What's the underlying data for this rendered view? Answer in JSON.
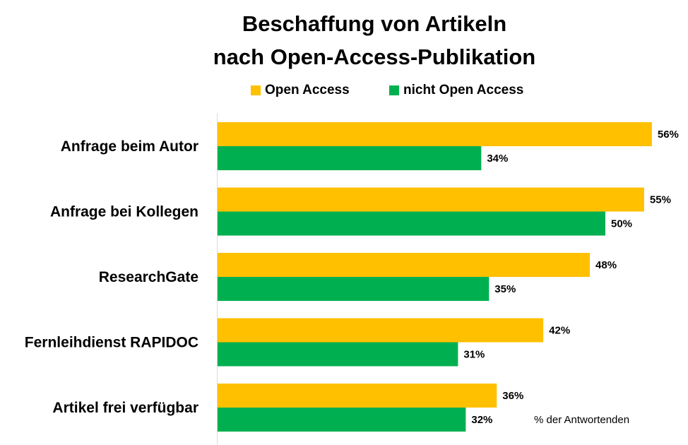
{
  "chart_data": {
    "type": "bar",
    "orientation": "horizontal",
    "title": "Beschaffung von Artikeln nach Open-Access-Publikation",
    "title_lines": [
      "Beschaffung von Artikeln",
      "nach Open-Access-Publikation"
    ],
    "categories": [
      "Anfrage beim Autor",
      "Anfrage bei Kollegen",
      "ResearchGate",
      "Fernleihdienst RAPIDOC",
      "Artikel frei verfügbar"
    ],
    "series": [
      {
        "name": "Open Access",
        "color": "#FFC000",
        "values": [
          56,
          55,
          48,
          42,
          36
        ]
      },
      {
        "name": "nicht Open Access",
        "color": "#00B050",
        "values": [
          34,
          50,
          35,
          31,
          32
        ]
      }
    ],
    "value_labels": {
      "Open Access": [
        "56%",
        "55%",
        "48%",
        "42%",
        "36%"
      ],
      "nicht Open Access": [
        "34%",
        "50%",
        "35%",
        "31%",
        "32%"
      ]
    },
    "xlabel": "",
    "ylabel": "",
    "unit_note": "% der Antwortenden",
    "xlim": [
      0,
      60
    ],
    "grid": false,
    "legend_position": "top"
  }
}
